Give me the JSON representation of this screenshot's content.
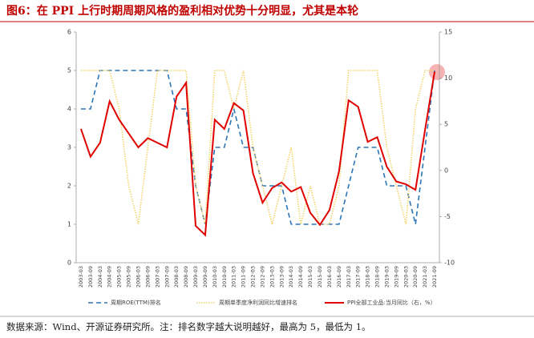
{
  "chart_data": {
    "type": "line",
    "title": "图6：在 PPI 上行时期周期风格的盈利相对优势十分明显，尤其是本轮",
    "source": "数据来源：Wind、开源证券研究所。注：排名数字越大说明越好，最高为 5，最低为 1。",
    "categories": [
      "2003-03",
      "2003-09",
      "2004-03",
      "2004-09",
      "2005-03",
      "2005-09",
      "2006-03",
      "2006-09",
      "2007-03",
      "2007-09",
      "2008-03",
      "2008-09",
      "2009-03",
      "2009-09",
      "2010-03",
      "2010-09",
      "2011-03",
      "2011-09",
      "2012-03",
      "2012-09",
      "2013-03",
      "2013-09",
      "2014-03",
      "2014-09",
      "2015-03",
      "2015-09",
      "2016-03",
      "2016-09",
      "2017-03",
      "2017-09",
      "2018-03",
      "2018-09",
      "2019-03",
      "2019-09",
      "2020-03",
      "2020-09",
      "2021-03",
      "2021-09"
    ],
    "series": [
      {
        "name": "周期ROE(TTM)排名",
        "color": "#2e75b6",
        "dash": "dashed",
        "axis": "y",
        "values": [
          4,
          4,
          5,
          5,
          5,
          5,
          5,
          5,
          5,
          5,
          4,
          4,
          2,
          1,
          3,
          3,
          4,
          3,
          3,
          2,
          2,
          2,
          1,
          1,
          1,
          1,
          1,
          1,
          2,
          3,
          3,
          3,
          2,
          2,
          2,
          1,
          3,
          5
        ]
      },
      {
        "name": "周期单季度净利润同比增速排名",
        "color": "#f2d46b",
        "dash": "dotted",
        "axis": "y",
        "values": [
          5,
          5,
          5,
          5,
          4,
          2,
          1,
          3,
          5,
          5,
          5,
          5,
          2,
          1,
          5,
          5,
          4,
          5,
          3,
          2,
          1,
          2,
          3,
          1,
          2,
          1,
          1,
          2,
          5,
          5,
          5,
          5,
          3,
          2,
          1,
          4,
          5,
          5
        ]
      },
      {
        "name": "PPI全部工业品:当月同比（右，%）",
        "color": "#e00000",
        "dash": "solid",
        "axis": "y2",
        "values": [
          4.5,
          1.5,
          3,
          7.5,
          5.5,
          4,
          2.5,
          3.5,
          3,
          2.5,
          8,
          9.5,
          -6,
          -7,
          5.5,
          4.5,
          7.3,
          6.5,
          -0.3,
          -3.5,
          -1.9,
          -1.3,
          -2.3,
          -1.8,
          -4.6,
          -5.9,
          -4.3,
          -0.1,
          7.6,
          6.9,
          3.1,
          3.6,
          0.4,
          -1.2,
          -1.5,
          -2.1,
          4.4,
          10.7
        ]
      }
    ],
    "ylim": [
      0,
      6
    ],
    "yticks": [
      0,
      1,
      2,
      3,
      4,
      5,
      6
    ],
    "y2lim": [
      -10,
      15
    ],
    "y2ticks": [
      -10,
      -5,
      0,
      5,
      10,
      15
    ]
  }
}
